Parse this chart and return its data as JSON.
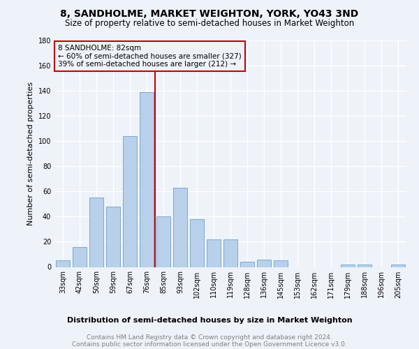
{
  "title": "8, SANDHOLME, MARKET WEIGHTON, YORK, YO43 3ND",
  "subtitle": "Size of property relative to semi-detached houses in Market Weighton",
  "xlabel": "Distribution of semi-detached houses by size in Market Weighton",
  "ylabel": "Number of semi-detached properties",
  "categories": [
    "33sqm",
    "42sqm",
    "50sqm",
    "59sqm",
    "67sqm",
    "76sqm",
    "85sqm",
    "93sqm",
    "102sqm",
    "110sqm",
    "119sqm",
    "128sqm",
    "136sqm",
    "145sqm",
    "153sqm",
    "162sqm",
    "171sqm",
    "179sqm",
    "188sqm",
    "196sqm",
    "205sqm"
  ],
  "values": [
    5,
    16,
    55,
    48,
    104,
    139,
    40,
    63,
    38,
    22,
    22,
    4,
    6,
    5,
    0,
    0,
    0,
    2,
    2,
    0,
    2
  ],
  "bar_color": "#b8d0ea",
  "bar_edge_color": "#7aaad0",
  "vline_index": 6,
  "vline_color": "#cc0000",
  "annotation_title": "8 SANDHOLME: 82sqm",
  "annotation_line1": "← 60% of semi-detached houses are smaller (327)",
  "annotation_line2": "39% of semi-detached houses are larger (212) →",
  "annotation_box_color": "#cc0000",
  "ylim": [
    0,
    180
  ],
  "yticks": [
    0,
    20,
    40,
    60,
    80,
    100,
    120,
    140,
    160,
    180
  ],
  "footer_line1": "Contains HM Land Registry data © Crown copyright and database right 2024.",
  "footer_line2": "Contains public sector information licensed under the Open Government Licence v3.0.",
  "bg_color": "#eef2f9",
  "grid_color": "#ffffff",
  "title_fontsize": 10,
  "subtitle_fontsize": 8.5,
  "ylabel_fontsize": 8,
  "xlabel_fontsize": 8,
  "tick_fontsize": 7,
  "annot_fontsize": 7.5,
  "footer_fontsize": 6.5
}
